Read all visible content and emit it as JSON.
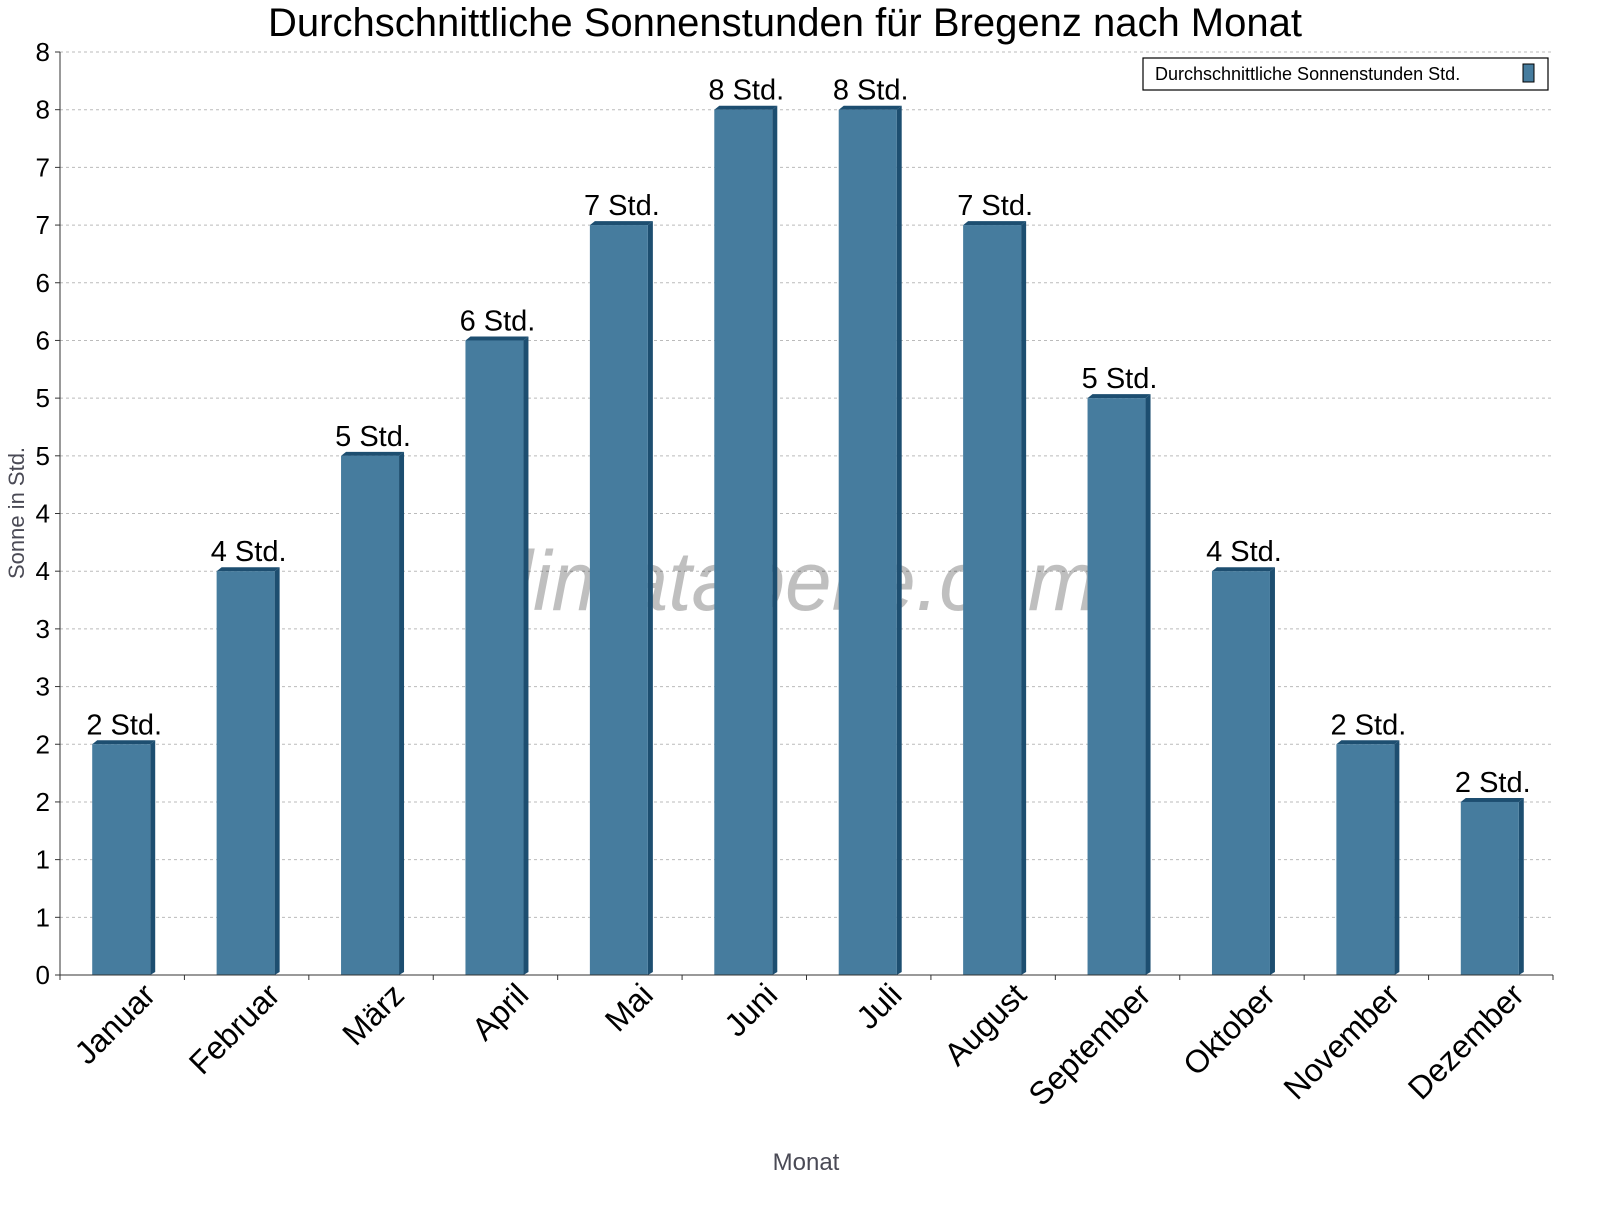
{
  "chart_data": {
    "type": "bar",
    "title": "Durchschnittliche Sonnenstunden für Bregenz nach Monat",
    "xlabel": "Monat",
    "ylabel": "Sonne in Std.",
    "ylim": [
      0,
      8
    ],
    "yticks": [
      0,
      0.5,
      1,
      1.5,
      2,
      2.5,
      3,
      3.5,
      4,
      4.5,
      5,
      5.5,
      6,
      6.5,
      7,
      7.5,
      8
    ],
    "ytick_labels": [
      "0",
      "1",
      "1",
      "2",
      "2",
      "3",
      "3",
      "4",
      "4",
      "5",
      "5",
      "6",
      "6",
      "7",
      "7",
      "8",
      "8"
    ],
    "grid": true,
    "legend_position": "top-right",
    "categories": [
      "Januar",
      "Februar",
      "März",
      "April",
      "Mai",
      "Juni",
      "Juli",
      "August",
      "September",
      "Oktober",
      "November",
      "Dezember"
    ],
    "series": [
      {
        "name": "Durchschnittliche Sonnenstunden Std.",
        "color": "#467c9e",
        "values": [
          2.0,
          3.5,
          4.5,
          5.5,
          6.5,
          7.5,
          7.5,
          6.5,
          5.0,
          3.5,
          2.0,
          1.5
        ],
        "data_labels": [
          "2 Std.",
          "4 Std.",
          "5 Std.",
          "6 Std.",
          "7 Std.",
          "8 Std.",
          "8 Std.",
          "7 Std.",
          "5 Std.",
          "4 Std.",
          "2 Std.",
          "2 Std."
        ]
      }
    ],
    "watermark": "klimatabelle.com"
  }
}
